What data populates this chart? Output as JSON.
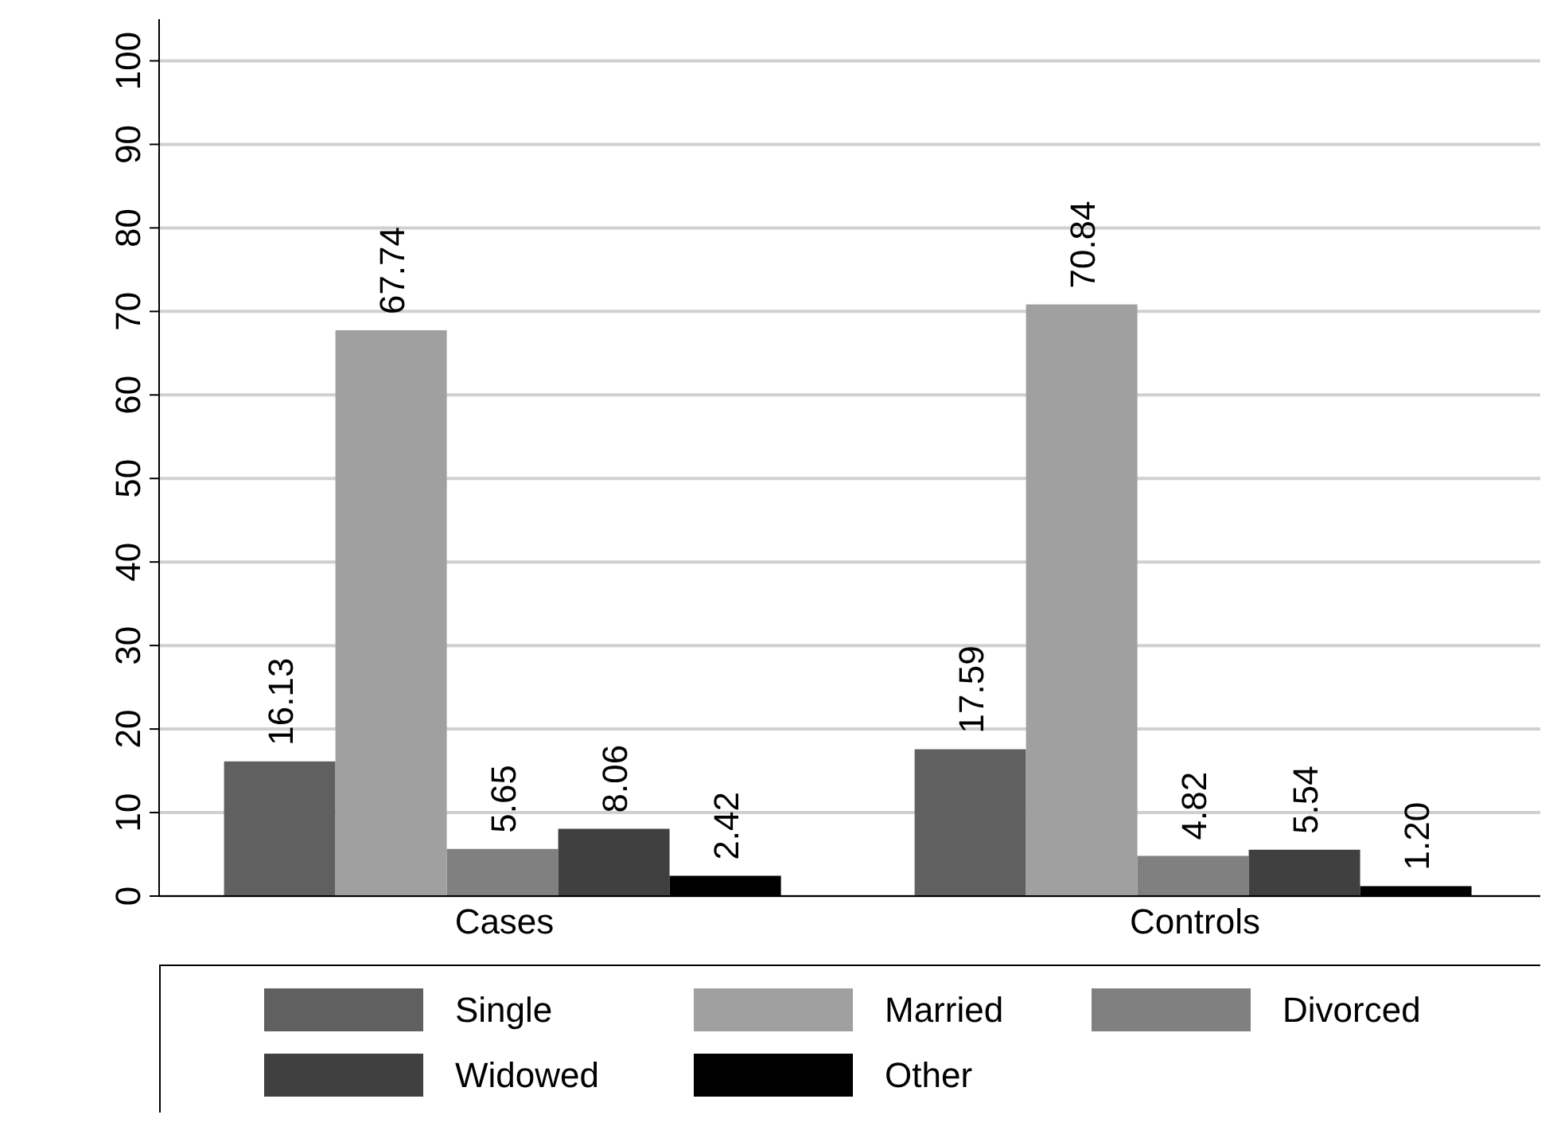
{
  "chart_data": {
    "type": "bar",
    "categories": [
      "Cases",
      "Controls"
    ],
    "series": [
      {
        "name": "Single",
        "color": "#606060",
        "values": [
          16.13,
          17.59
        ],
        "value_labels": [
          "16.13",
          "17.59"
        ]
      },
      {
        "name": "Married",
        "color": "#a0a0a0",
        "values": [
          67.74,
          70.84
        ],
        "value_labels": [
          "67.74",
          "70.84"
        ]
      },
      {
        "name": "Divorced",
        "color": "#808080",
        "values": [
          5.65,
          4.82
        ],
        "value_labels": [
          "5.65",
          "4.82"
        ]
      },
      {
        "name": "Widowed",
        "color": "#404040",
        "values": [
          8.06,
          5.54
        ],
        "value_labels": [
          "8.06",
          "5.54"
        ]
      },
      {
        "name": "Other",
        "color": "#000000",
        "values": [
          2.42,
          1.2
        ],
        "value_labels": [
          "2.42",
          "1.20"
        ]
      }
    ],
    "ylim": [
      0,
      105
    ],
    "yticks": [
      0,
      10,
      20,
      30,
      40,
      50,
      60,
      70,
      80,
      90,
      100
    ],
    "grid": "y",
    "legend": "bottom"
  }
}
